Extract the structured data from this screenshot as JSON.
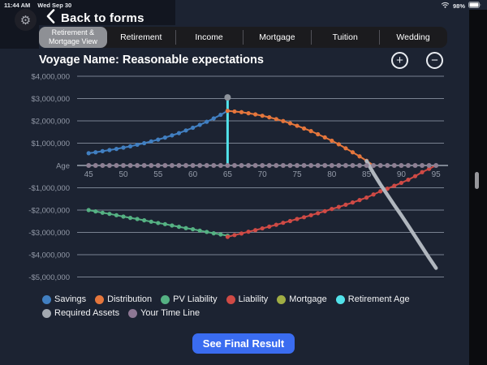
{
  "status_bar": {
    "time": "11:44 AM",
    "date": "Wed Sep 30",
    "battery_percent": "98%"
  },
  "header": {
    "back_label": "Back to forms"
  },
  "tabs": [
    {
      "label": "Retirement & Mortgage View",
      "selected": true
    },
    {
      "label": "Retirement",
      "selected": false
    },
    {
      "label": "Income",
      "selected": false
    },
    {
      "label": "Mortgage",
      "selected": false
    },
    {
      "label": "Tuition",
      "selected": false
    },
    {
      "label": "Wedding",
      "selected": false
    }
  ],
  "chart_header": {
    "title": "Voyage Name: Reasonable expectations",
    "zoom_in": "+",
    "zoom_out": "−"
  },
  "chart_data": {
    "type": "line",
    "title": "Voyage Name: Reasonable expectations",
    "values_unit": "millions_usd",
    "x_axis": {
      "label": "Age",
      "min": 45,
      "max": 95,
      "ticks": [
        45,
        50,
        55,
        60,
        65,
        70,
        75,
        80,
        85,
        90,
        95
      ]
    },
    "y_axis": {
      "min": -5,
      "max": 4,
      "rows": [
        {
          "label": "$4,000,000",
          "value": 4
        },
        {
          "label": "$3,000,000",
          "value": 3
        },
        {
          "label": "$2,000,000",
          "value": 2
        },
        {
          "label": "$1,000,000",
          "value": 1
        },
        {
          "label": "Age",
          "value": 0
        },
        {
          "label": "-$1,000,000",
          "value": -1
        },
        {
          "label": "-$2,000,000",
          "value": -2
        },
        {
          "label": "-$3,000,000",
          "value": -3
        },
        {
          "label": "-$4,000,000",
          "value": -4
        },
        {
          "label": "-$5,000,000",
          "value": -5
        }
      ]
    },
    "series": [
      {
        "name": "PV Liability",
        "color": "#55b183",
        "style": "dots-line",
        "age_start": 45,
        "values": [
          -2.0,
          -2.06,
          -2.12,
          -2.17,
          -2.23,
          -2.29,
          -2.35,
          -2.4,
          -2.46,
          -2.52,
          -2.58,
          -2.63,
          -2.69,
          -2.75,
          -2.81,
          -2.86,
          -2.92,
          -2.98,
          -3.04,
          -3.09,
          -3.15
        ]
      },
      {
        "name": "Liability",
        "color": "#cf4a45",
        "style": "dots-line",
        "age_start": 65,
        "values": [
          -3.2,
          -3.12,
          -3.05,
          -2.97,
          -2.9,
          -2.82,
          -2.74,
          -2.66,
          -2.57,
          -2.49,
          -2.4,
          -2.32,
          -2.23,
          -2.14,
          -2.05,
          -1.95,
          -1.86,
          -1.76,
          -1.66,
          -1.55,
          -1.44,
          -1.3,
          -1.16,
          -1.04,
          -0.91,
          -0.78,
          -0.64,
          -0.48,
          -0.3,
          -0.15,
          0.0
        ]
      },
      {
        "name": "Savings",
        "color": "#417fc1",
        "style": "dots-line",
        "age_start": 45,
        "values": [
          0.55,
          0.59,
          0.64,
          0.69,
          0.74,
          0.8,
          0.86,
          0.93,
          1.0,
          1.08,
          1.16,
          1.25,
          1.35,
          1.45,
          1.57,
          1.69,
          1.82,
          1.96,
          2.11,
          2.27,
          2.45
        ]
      },
      {
        "name": "Distribution",
        "color": "#e5763c",
        "style": "dots-line",
        "age_start": 65,
        "values": [
          2.45,
          2.42,
          2.39,
          2.34,
          2.29,
          2.23,
          2.16,
          2.08,
          1.99,
          1.89,
          1.78,
          1.66,
          1.54,
          1.4,
          1.26,
          1.11,
          0.95,
          0.77,
          0.59,
          0.41,
          0.21,
          0.0
        ]
      },
      {
        "name": "Required Assets",
        "color": "#b0b6be",
        "style": "thick-line",
        "age_start": 85,
        "width": 4.5,
        "values": [
          0.2,
          -0.35,
          -0.85,
          -1.32,
          -1.78,
          -2.23,
          -2.7,
          -3.18,
          -3.66,
          -4.14,
          -4.6
        ]
      },
      {
        "name": "Mortgage",
        "color": "#a0ad44",
        "style": "none",
        "visible": false
      },
      {
        "name": "Retirement Age",
        "color": "#52e2ea",
        "style": "vline",
        "age": 65,
        "top_value": 3.05,
        "cap_color": "#8d939c"
      },
      {
        "name": "Your Time Line",
        "color": "#8d7f93",
        "style": "dots",
        "age_start": 45,
        "age_end": 95,
        "value": 0
      }
    ],
    "legend_position": "bottom"
  },
  "legend": {
    "rows": [
      [
        {
          "label": "Savings",
          "color": "#417fc1"
        },
        {
          "label": "Distribution",
          "color": "#e5763c"
        },
        {
          "label": "PV Liability",
          "color": "#55b183"
        },
        {
          "label": "Liability",
          "color": "#cf4a45"
        },
        {
          "label": "Mortgage",
          "color": "#a0ad44"
        },
        {
          "label": "Retirement Age",
          "color": "#52e2ea"
        }
      ],
      [
        {
          "label": "Required Assets",
          "color": "#a3a9b1"
        },
        {
          "label": "Your Time Line",
          "color": "#8d7794"
        }
      ]
    ]
  },
  "footer": {
    "cta_label": "See Final Result"
  },
  "colors": {
    "background": "#1c2332",
    "header_panel": "#121620",
    "tab_bg": "#1b1b1e",
    "tab_selected": "#8e9095",
    "cta": "#3a6cf0",
    "gridline": "#848d9c"
  }
}
